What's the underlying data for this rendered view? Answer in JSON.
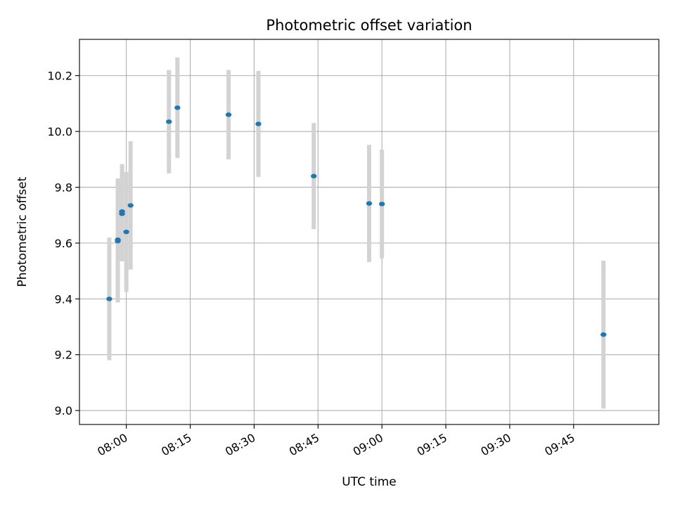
{
  "chart_data": {
    "type": "scatter",
    "title": "Photometric offset variation",
    "xlabel": "UTC time",
    "ylabel": "Photometric offset",
    "x_axis_kind": "time",
    "xlim": [
      "07:49",
      "10:05"
    ],
    "ylim": [
      8.95,
      10.33
    ],
    "x_ticks": [
      "08:00",
      "08:15",
      "08:30",
      "08:45",
      "09:00",
      "09:15",
      "09:30",
      "09:45"
    ],
    "y_ticks": [
      9.0,
      9.2,
      9.4,
      9.6,
      9.8,
      10.0,
      10.2
    ],
    "grid": true,
    "colors": {
      "marker": "#1f77b4",
      "error_bar": "#d3d3d3",
      "grid": "#b0b0b0"
    },
    "points": [
      {
        "x": "07:56",
        "y": 9.4,
        "err": 0.22
      },
      {
        "x": "07:58",
        "y": 9.607,
        "err": 0.22
      },
      {
        "x": "07:58",
        "y": 9.612,
        "err": 0.22
      },
      {
        "x": "07:59",
        "y": 9.713,
        "err": 0.17
      },
      {
        "x": "07:59",
        "y": 9.705,
        "err": 0.17
      },
      {
        "x": "08:00",
        "y": 9.64,
        "err": 0.215
      },
      {
        "x": "08:01",
        "y": 9.735,
        "err": 0.23
      },
      {
        "x": "08:10",
        "y": 10.035,
        "err": 0.185
      },
      {
        "x": "08:12",
        "y": 10.085,
        "err": 0.18
      },
      {
        "x": "08:24",
        "y": 10.06,
        "err": 0.16
      },
      {
        "x": "08:31",
        "y": 10.027,
        "err": 0.19
      },
      {
        "x": "08:44",
        "y": 9.84,
        "err": 0.19
      },
      {
        "x": "08:57",
        "y": 9.742,
        "err": 0.21
      },
      {
        "x": "09:00",
        "y": 9.74,
        "err": 0.195
      },
      {
        "x": "09:52",
        "y": 9.272,
        "err": 0.265
      }
    ]
  }
}
